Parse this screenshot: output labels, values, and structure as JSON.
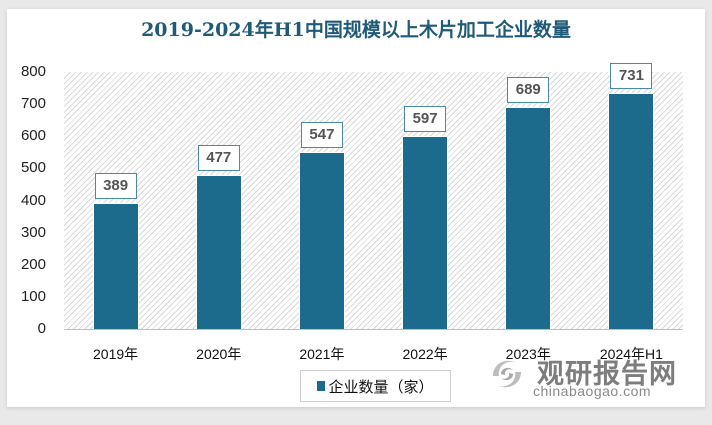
{
  "title": "2019-2024年H1中国规模以上木片加工企业数量",
  "y_ticks": [
    "800",
    "700",
    "600",
    "500",
    "400",
    "300",
    "200",
    "100",
    "0"
  ],
  "categories": [
    "2019年",
    "2020年",
    "2021年",
    "2022年",
    "2023年",
    "2024年H1"
  ],
  "values": [
    "389",
    "477",
    "547",
    "597",
    "689",
    "731"
  ],
  "legend": {
    "label": "企业数量（家）"
  },
  "watermark": {
    "cn": "观研报告网",
    "en": "chinabaogao.com",
    "icon": "chinabaogao-logo-icon"
  },
  "colors": {
    "bar": "#1c6a8c",
    "title": "#1f5a78",
    "label_border": "#4a8aa5"
  },
  "chart_data": {
    "type": "bar",
    "title": "2019-2024年H1中国规模以上木片加工企业数量",
    "categories": [
      "2019年",
      "2020年",
      "2021年",
      "2022年",
      "2023年",
      "2024年H1"
    ],
    "series": [
      {
        "name": "企业数量（家）",
        "values": [
          389,
          477,
          547,
          597,
          689,
          731
        ]
      }
    ],
    "xlabel": "",
    "ylabel": "",
    "ylim": [
      0,
      800
    ],
    "yticks": [
      0,
      100,
      200,
      300,
      400,
      500,
      600,
      700,
      800
    ],
    "grid": false,
    "legend_position": "bottom",
    "data_labels": true
  }
}
